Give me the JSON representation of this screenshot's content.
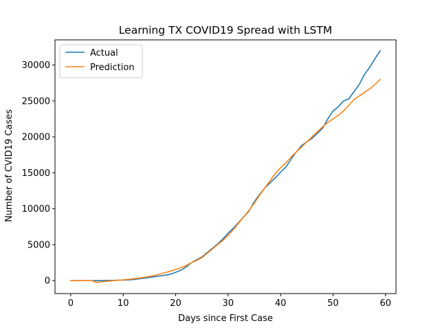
{
  "chart_data": {
    "type": "line",
    "title": "Learning TX COVID19 Spread with LSTM",
    "xlabel": "Days since First Case",
    "ylabel": "Number of CVID19 Cases",
    "xlim": [
      -3,
      62
    ],
    "ylim": [
      -1800,
      33500
    ],
    "x_ticks": [
      0,
      10,
      20,
      30,
      40,
      50,
      60
    ],
    "y_ticks": [
      0,
      5000,
      10000,
      15000,
      20000,
      25000,
      30000
    ],
    "x_tick_labels": [
      "0",
      "10",
      "20",
      "30",
      "40",
      "50",
      "60"
    ],
    "y_tick_labels": [
      "0",
      "5000",
      "10000",
      "15000",
      "20000",
      "25000",
      "30000"
    ],
    "grid": false,
    "legend_position": "top-left",
    "series": [
      {
        "name": "Actual",
        "color": "#1f77b4",
        "x": [
          0,
          1,
          2,
          3,
          4,
          5,
          6,
          7,
          8,
          9,
          10,
          11,
          12,
          13,
          14,
          15,
          16,
          17,
          18,
          19,
          20,
          21,
          22,
          23,
          24,
          25,
          26,
          27,
          28,
          29,
          30,
          31,
          32,
          33,
          34,
          35,
          36,
          37,
          38,
          39,
          40,
          41,
          42,
          43,
          44,
          45,
          46,
          47,
          48,
          49,
          50,
          51,
          52,
          53,
          54,
          55,
          56,
          57,
          58,
          59
        ],
        "values": [
          0,
          0,
          0,
          0,
          0,
          0,
          10,
          20,
          40,
          60,
          80,
          100,
          150,
          250,
          350,
          450,
          550,
          650,
          750,
          900,
          1150,
          1450,
          1900,
          2500,
          2900,
          3300,
          3900,
          4500,
          5100,
          5800,
          6600,
          7300,
          8100,
          8900,
          9700,
          11000,
          12000,
          12900,
          13600,
          14300,
          15100,
          15800,
          16900,
          17900,
          18800,
          19300,
          19800,
          20500,
          21200,
          22500,
          23600,
          24200,
          25000,
          25300,
          26300,
          27300,
          28700,
          29700,
          30900,
          32000
        ]
      },
      {
        "name": "Prediction",
        "color": "#ff7f0e",
        "x": [
          0,
          1,
          2,
          3,
          4,
          5,
          6,
          7,
          8,
          9,
          10,
          11,
          12,
          13,
          14,
          15,
          16,
          17,
          18,
          19,
          20,
          21,
          22,
          23,
          24,
          25,
          26,
          27,
          28,
          29,
          30,
          31,
          32,
          33,
          34,
          35,
          36,
          37,
          38,
          39,
          40,
          41,
          42,
          43,
          44,
          45,
          46,
          47,
          48,
          49,
          50,
          51,
          52,
          53,
          54,
          55,
          56,
          57,
          58,
          59
        ],
        "values": [
          0,
          0,
          0,
          0,
          0,
          -250,
          -150,
          -80,
          0,
          50,
          100,
          180,
          260,
          350,
          450,
          580,
          720,
          900,
          1120,
          1320,
          1550,
          1800,
          2100,
          2500,
          2800,
          3200,
          3800,
          4400,
          5000,
          5600,
          6300,
          7100,
          8000,
          8900,
          9800,
          10800,
          11900,
          12900,
          13900,
          14900,
          15700,
          16400,
          17200,
          17900,
          18600,
          19300,
          20000,
          20700,
          21400,
          22000,
          22500,
          23000,
          23600,
          24400,
          25200,
          25700,
          26200,
          26700,
          27300,
          28000
        ]
      }
    ]
  }
}
